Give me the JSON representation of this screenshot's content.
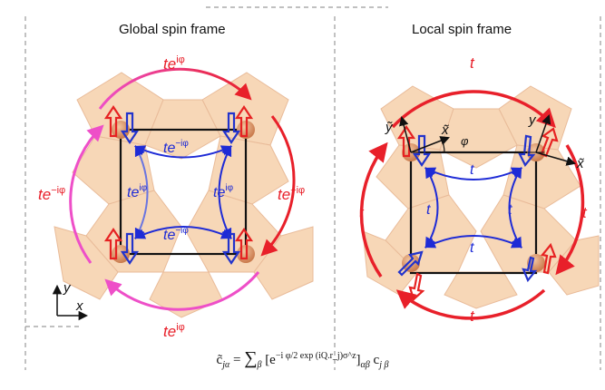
{
  "panels": {
    "global": {
      "title": "Global spin frame",
      "hop_outer_top": "te",
      "hop_outer_top_sup": "iφ",
      "hop_outer_bottom": "te",
      "hop_outer_bottom_sup": "iφ",
      "hop_outer_left": "te",
      "hop_outer_left_sup": "−iφ",
      "hop_outer_right": "te",
      "hop_outer_right_sup": "−iφ",
      "hop_inner_top": "te",
      "hop_inner_top_sup": "−iφ",
      "hop_inner_bottom": "te",
      "hop_inner_bottom_sup": "−iφ",
      "hop_inner_left": "te",
      "hop_inner_left_sup": "iφ",
      "hop_inner_right": "te",
      "hop_inner_right_sup": "iφ",
      "axis_x": "x",
      "axis_y": "y"
    },
    "local": {
      "title": "Local spin frame",
      "hop_outer": [
        "t",
        "t",
        "t",
        "t"
      ],
      "hop_inner": [
        "t",
        "t",
        "t",
        "t"
      ],
      "local_axis_x1": "x̃",
      "local_axis_y1": "ỹ",
      "local_axis_x2": "x̃",
      "local_axis_y2": "y",
      "angle": "φ"
    }
  },
  "formula": {
    "lhs": "c̃",
    "lhs_sub": "jα",
    "equals": "=",
    "sum": "∑",
    "sum_sub": "β",
    "bracket_open": "[e",
    "exp_sup": "−i φ/2 exp (iQ.r_j)σ^z",
    "bracket_close": "]",
    "bracket_sub": "αβ",
    "rhs": "c",
    "rhs_sub": "j β"
  },
  "colors": {
    "octa_fill": "#f7d5b4",
    "octa_edge": "#e8b894",
    "outer_arrow_red": "#e8202a",
    "outer_arrow_pink": "#ee4fc8",
    "inner_arrow_blue": "#1e2bd6",
    "spin_red": "#e62222",
    "spin_blue": "#2233cc",
    "atom": "#d9946a"
  }
}
